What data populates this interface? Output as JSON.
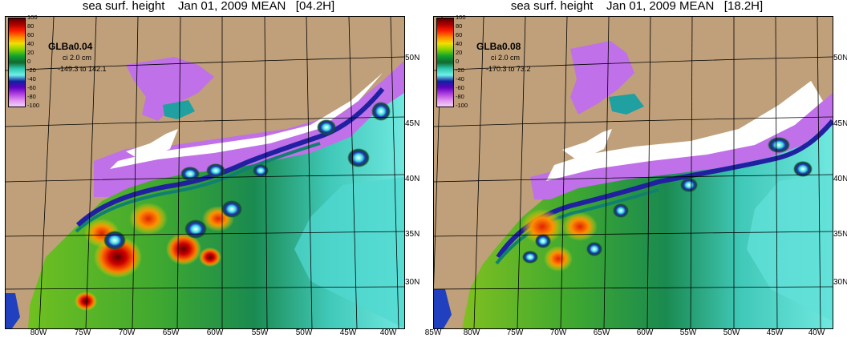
{
  "panels": [
    {
      "title": "sea surf. height    Jan 01, 2009 MEAN   [04.2H]",
      "model": "GLBa0.04",
      "ci": "ci 2.0 cm",
      "range": "-149.3 to 142.1",
      "lon_labels": [
        "80W",
        "75W",
        "70W",
        "65W",
        "60W",
        "55W",
        "50W",
        "45W",
        "40W"
      ],
      "lat_labels": [
        "50N",
        "45N",
        "40N",
        "35N",
        "30N"
      ]
    },
    {
      "title": "sea surf. height    Jan 01, 2009 MEAN   [18.2H]",
      "model": "GLBa0.08",
      "ci": "ci 2.0 cm",
      "range": "-170.3 to 73.2",
      "lon_labels": [
        "85W",
        "80W",
        "75W",
        "70W",
        "65W",
        "60W",
        "55W",
        "50W",
        "45W",
        "40W"
      ],
      "lat_labels": [
        "50N",
        "45N",
        "40N",
        "35N",
        "30N"
      ]
    }
  ],
  "colorbar": {
    "ticks": [
      "100",
      "80",
      "60",
      "40",
      "20",
      "0",
      "-20",
      "-40",
      "-60",
      "-80",
      "-100"
    ],
    "colors": [
      "#5a0000",
      "#b00000",
      "#ff2000",
      "#ff8a00",
      "#f0e000",
      "#80d000",
      "#10a030",
      "#106a30",
      "#30c8b0",
      "#70f0e8",
      "#1020a0",
      "#6000c0",
      "#b040e0",
      "#e090f0",
      "#f4d0f8"
    ]
  },
  "colors": {
    "land": "#bfa07a",
    "ice_white": "#ffffff",
    "grid": "#000000"
  }
}
